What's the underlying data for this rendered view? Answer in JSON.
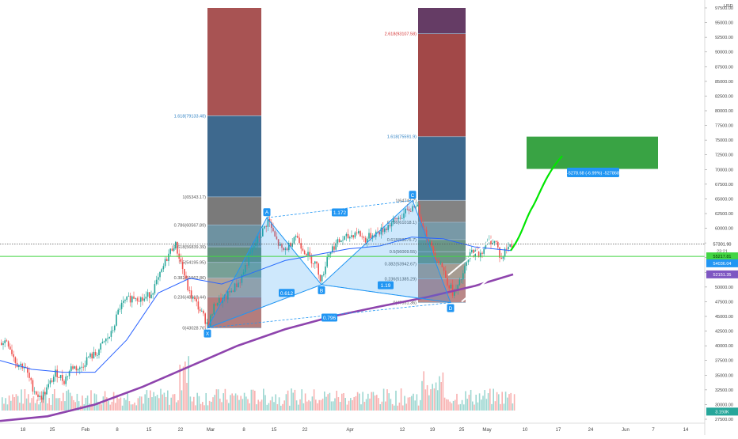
{
  "chart_data": {
    "type": "candlestick",
    "axis": {
      "currency": "USD",
      "ymin": 27500,
      "ymax": 97500,
      "y_ticks": [
        "97500.00",
        "95000.00",
        "92500.00",
        "90000.00",
        "87500.00",
        "85000.00",
        "82500.00",
        "80000.00",
        "77500.00",
        "75000.00",
        "72500.00",
        "70000.00",
        "67500.00",
        "65000.00",
        "62500.00",
        "60000.00",
        "57500.00",
        "55000.00",
        "52500.00",
        "50000.00",
        "47500.00",
        "45000.00",
        "42500.00",
        "40000.00",
        "37500.00",
        "35000.00",
        "32500.00",
        "30000.00",
        "27500.00"
      ],
      "x_ticks": [
        "18",
        "25",
        "Feb",
        "8",
        "15",
        "22",
        "Mar",
        "8",
        "15",
        "22",
        "Apr",
        "12",
        "19",
        "25",
        "May",
        "10",
        "17",
        "24",
        "Jun",
        "7",
        "14"
      ],
      "grid": false
    },
    "price_labels": {
      "last_price": "57301.90",
      "countdown": "23:21",
      "green_line": "55217.81",
      "blue_line": "54036.04",
      "purple_line": "52151.35",
      "volume": "3.193K"
    },
    "fib_left": {
      "levels": [
        {
          "label": "1.618(79133.48)",
          "price": 79133
        },
        {
          "label": "1(65343.17)",
          "price": 65343
        },
        {
          "label": "0.786(60567.89)",
          "price": 60568
        },
        {
          "label": "0.618(56839.39)",
          "price": 56839
        },
        {
          "label": "0.5(54195.95)",
          "price": 54196
        },
        {
          "label": "0.382(51562.86)",
          "price": 51563
        },
        {
          "label": "0.236(48318.44)",
          "price": 48318
        },
        {
          "label": "0(43028.76)",
          "price": 43029
        }
      ]
    },
    "fib_right": {
      "levels": [
        {
          "label": "2.618(93107.58)",
          "price": 93108
        },
        {
          "label": "1.618(75591.9)",
          "price": 75592
        },
        {
          "label": "1(64747.7)",
          "price": 64748
        },
        {
          "label": "0.786(61018.1)",
          "price": 61018
        },
        {
          "label": "0.618(58075.7)",
          "price": 58076
        },
        {
          "label": "0.5(56009.55)",
          "price": 56010
        },
        {
          "label": "0.382(53942.67)",
          "price": 53943
        },
        {
          "label": "0.236(51385.29)",
          "price": 51385
        },
        {
          "label": "0(47351.36)",
          "price": 47351
        }
      ]
    },
    "pattern": {
      "points": [
        {
          "label": "X",
          "price": 43029
        },
        {
          "label": "A",
          "price": 61800
        },
        {
          "label": "B",
          "price": 50400
        },
        {
          "label": "C",
          "price": 64748
        },
        {
          "label": "D",
          "price": 47351
        }
      ],
      "ratios": [
        "1.172",
        "0.612",
        "1.19",
        "0.796"
      ]
    },
    "target": {
      "top": 75600,
      "bottom": 70100,
      "label": "-5278.68 (-6.99%) -527868"
    }
  }
}
